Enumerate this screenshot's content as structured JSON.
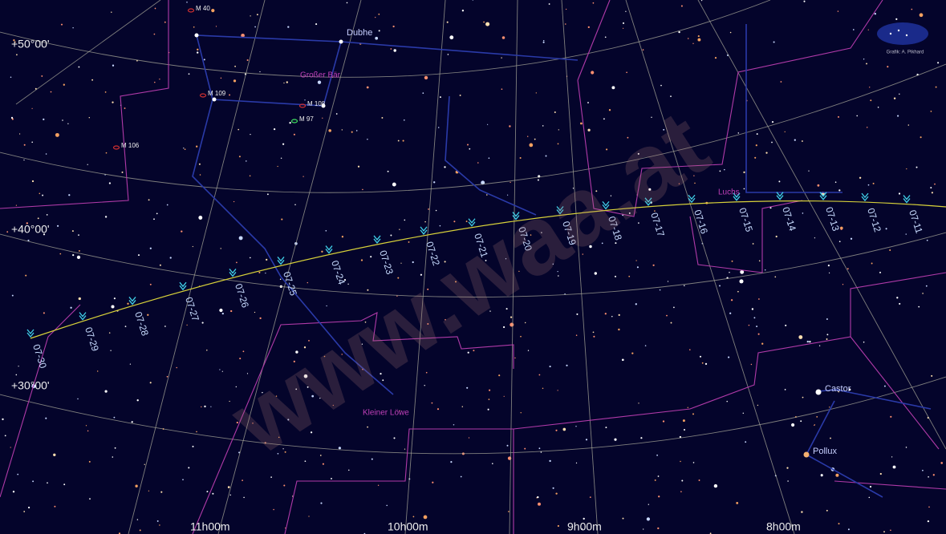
{
  "dec_labels": [
    "+50°00'",
    "+40°00'",
    "+30°00'"
  ],
  "ra_labels": [
    "11h00m",
    "10h00m",
    "9h00m",
    "8h00m"
  ],
  "path_dates": [
    "07-30",
    "07-29",
    "07-28",
    "07-27",
    "07-26",
    "07-25",
    "07-24",
    "07-23",
    "07-22",
    "07-21",
    "07-20",
    "07-19",
    "07-18",
    "07-17",
    "07-16",
    "07-15",
    "07-14",
    "07-13",
    "07-12",
    "07-11"
  ],
  "stars": [
    "Dubhe",
    "Castor",
    "Pollux"
  ],
  "objects": [
    "M 40",
    "M 109",
    "M 108",
    "M 97",
    "M 106"
  ],
  "constellations": [
    "Großer Bär",
    "Luchs",
    "Kleiner Löwe"
  ],
  "credit": "Grafik: A. Pikhard",
  "watermark": "www.waa.at"
}
